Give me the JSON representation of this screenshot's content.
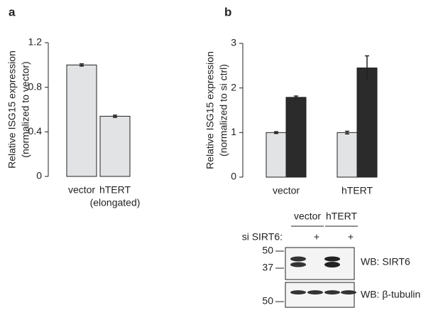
{
  "chart_data": [
    {
      "type": "bar",
      "panel": "a",
      "y_label": [
        "Relative ISG15 expression",
        "(normalized to vector)"
      ],
      "categories": [
        [
          "vector"
        ],
        [
          "hTERT",
          "(elongated)"
        ]
      ],
      "series": [
        {
          "color": "#e2e3e5",
          "values": [
            1.0,
            0.54
          ],
          "errors": [
            0.01,
            0.01
          ]
        }
      ],
      "ylim": [
        0,
        1.2
      ],
      "yticks": [
        0,
        0.4,
        0.8,
        1.2
      ]
    },
    {
      "type": "bar",
      "panel": "b",
      "y_label": [
        "Relative ISG15 expression",
        "(normalized to si ctrl)"
      ],
      "categories": [
        [
          "vector"
        ],
        [
          "hTERT"
        ]
      ],
      "series": [
        {
          "color": "#e2e3e5",
          "values": [
            1.0,
            1.0
          ],
          "errors": [
            0.02,
            0.03
          ]
        },
        {
          "color": "#2b2b2b",
          "values": [
            1.79,
            2.45
          ],
          "errors": [
            0.03,
            0.27
          ]
        }
      ],
      "ylim": [
        0,
        3
      ],
      "yticks": [
        0,
        1,
        2,
        3
      ]
    }
  ],
  "blot": {
    "lanes": [
      "vector",
      "hTERT"
    ],
    "condition": "si SIRT6:",
    "marks": [
      "+",
      "+"
    ],
    "panels": [
      {
        "label": "WB: SIRT6",
        "ladder": [
          "50",
          "37"
        ]
      },
      {
        "label": "WB: β-tubulin",
        "ladder": [
          "50"
        ]
      }
    ]
  }
}
